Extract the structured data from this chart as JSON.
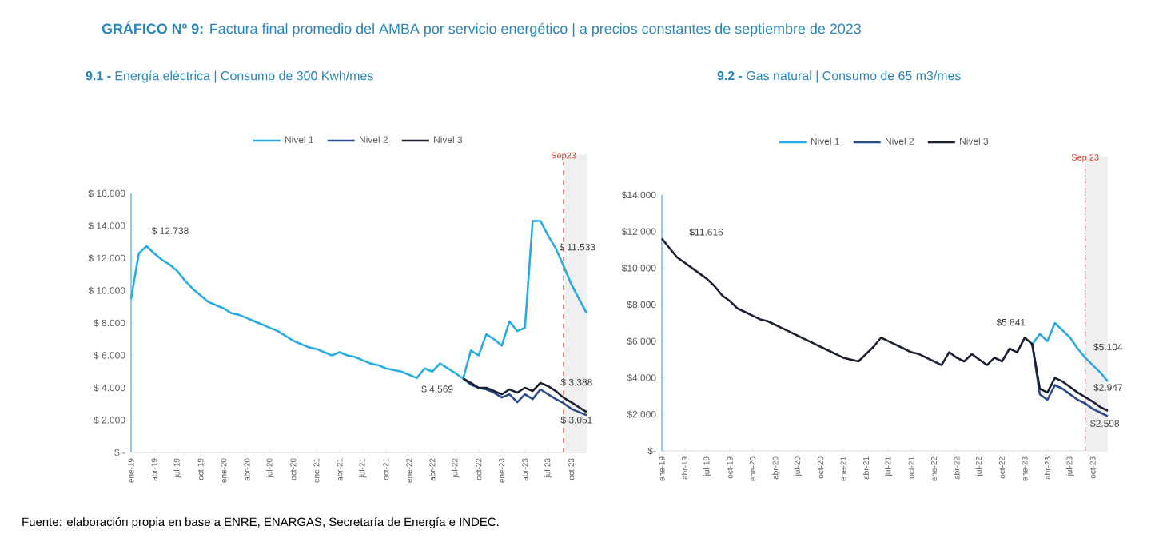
{
  "chart_data": [
    {
      "type": "other",
      "title": "**GRÁFICO Nº 9:** Factura final promedio del AMBA por servicio energético | a precios constantes de septiembre de 2023",
      "annotations": [
        "Fuente: elaboración propia en base a ENRE, ENARGAS, Secretaría de Energía e INDEC."
      ]
    },
    {
      "type": "line",
      "title": "**9.1 -** Energía eléctrica | Consumo de 300 Kwh/mes",
      "legend": "top",
      "x": [
        "2019-01",
        "2019-02",
        "2019-03",
        "2019-04",
        "2019-05",
        "2019-06",
        "2019-07",
        "2019-08",
        "2019-09",
        "2019-10",
        "2019-11",
        "2019-12",
        "2020-01",
        "2020-02",
        "2020-03",
        "2020-04",
        "2020-05",
        "2020-06",
        "2020-07",
        "2020-08",
        "2020-09",
        "2020-10",
        "2020-11",
        "2020-12",
        "2021-01",
        "2021-02",
        "2021-03",
        "2021-04",
        "2021-05",
        "2021-06",
        "2021-07",
        "2021-08",
        "2021-09",
        "2021-10",
        "2021-11",
        "2021-12",
        "2022-01",
        "2022-02",
        "2022-03",
        "2022-04",
        "2022-05",
        "2022-06",
        "2022-07",
        "2022-08",
        "2022-09",
        "2022-10",
        "2022-11",
        "2022-12",
        "2023-01",
        "2023-02",
        "2023-03",
        "2023-04",
        "2023-05",
        "2023-06",
        "2023-07",
        "2023-08",
        "2023-09",
        "2023-10",
        "2023-11",
        "2023-12"
      ],
      "xlim": [
        "2019-01",
        "2023-12"
      ],
      "xticks": [
        {
          "value": "2019-01",
          "label": "ene-19"
        },
        {
          "value": "2019-04",
          "label": "abr-19"
        },
        {
          "value": "2019-07",
          "label": "jul-19"
        },
        {
          "value": "2019-10",
          "label": "oct-19"
        },
        {
          "value": "2020-01",
          "label": "ene-20"
        },
        {
          "value": "2020-04",
          "label": "abr-20"
        },
        {
          "value": "2020-07",
          "label": "jul-20"
        },
        {
          "value": "2020-10",
          "label": "oct-20"
        },
        {
          "value": "2021-01",
          "label": "ene-21"
        },
        {
          "value": "2021-04",
          "label": "abr-21"
        },
        {
          "value": "2021-07",
          "label": "jul-21"
        },
        {
          "value": "2021-10",
          "label": "oct-21"
        },
        {
          "value": "2022-01",
          "label": "ene-22"
        },
        {
          "value": "2022-04",
          "label": "abr-22"
        },
        {
          "value": "2022-07",
          "label": "jul-22"
        },
        {
          "value": "2022-10",
          "label": "oct-22"
        },
        {
          "value": "2023-01",
          "label": "ene-23"
        },
        {
          "value": "2023-04",
          "label": "abr-23"
        },
        {
          "value": "2023-07",
          "label": "jul-23"
        },
        {
          "value": "2023-10",
          "label": "oct-23"
        }
      ],
      "ylim": [
        0,
        16
      ],
      "yticks": [
        {
          "value": 0,
          "label": "$ -"
        },
        {
          "value": 2,
          "label": "$ 2.000"
        },
        {
          "value": 4,
          "label": "$ 4.000"
        },
        {
          "value": 6,
          "label": "$ 6.000"
        },
        {
          "value": 8,
          "label": "$ 8.000"
        },
        {
          "value": 10,
          "label": "$ 10.000"
        },
        {
          "value": 12,
          "label": "$ 12.000"
        },
        {
          "value": 14,
          "label": "$ 14.000"
        },
        {
          "value": 16,
          "label": "$ 16.000"
        }
      ],
      "series": [
        {
          "name": "Nivel 1",
          "color": "#29abe2",
          "values": [
            9.5,
            12.3,
            12.738,
            12.3,
            11.9,
            11.6,
            11.2,
            10.6,
            10.1,
            9.7,
            9.3,
            9.1,
            8.9,
            8.6,
            8.5,
            8.3,
            8.1,
            7.9,
            7.7,
            7.5,
            7.2,
            6.9,
            6.7,
            6.5,
            6.4,
            6.2,
            6.0,
            6.2,
            6.0,
            5.9,
            5.7,
            5.5,
            5.4,
            5.2,
            5.1,
            5.0,
            4.8,
            4.6,
            5.2,
            5.0,
            5.5,
            5.2,
            4.9,
            4.569,
            6.3,
            6.0,
            7.3,
            7.0,
            6.6,
            8.1,
            7.5,
            7.7,
            14.3,
            14.3,
            13.4,
            12.6,
            11.533,
            10.4,
            9.5,
            8.6
          ]
        },
        {
          "name": "Nivel 2",
          "color": "#2b4c8c",
          "values": [
            null,
            null,
            null,
            null,
            null,
            null,
            null,
            null,
            null,
            null,
            null,
            null,
            null,
            null,
            null,
            null,
            null,
            null,
            null,
            null,
            null,
            null,
            null,
            null,
            null,
            null,
            null,
            null,
            null,
            null,
            null,
            null,
            null,
            null,
            null,
            null,
            null,
            null,
            null,
            null,
            null,
            null,
            null,
            4.569,
            4.2,
            4.0,
            3.9,
            3.7,
            3.4,
            3.6,
            3.1,
            3.6,
            3.3,
            3.9,
            3.6,
            3.3,
            3.051,
            2.7,
            2.5,
            2.3
          ]
        },
        {
          "name": "Nivel 3",
          "color": "#1b2033",
          "values": [
            null,
            null,
            null,
            null,
            null,
            null,
            null,
            null,
            null,
            null,
            null,
            null,
            null,
            null,
            null,
            null,
            null,
            null,
            null,
            null,
            null,
            null,
            null,
            null,
            null,
            null,
            null,
            null,
            null,
            null,
            null,
            null,
            null,
            null,
            null,
            null,
            null,
            null,
            null,
            null,
            null,
            null,
            null,
            4.569,
            4.3,
            4.0,
            4.0,
            3.8,
            3.6,
            3.9,
            3.7,
            4.0,
            3.8,
            4.3,
            4.1,
            3.8,
            3.388,
            3.1,
            2.8,
            2.5
          ]
        }
      ],
      "ref_lines": [
        {
          "axis": "x",
          "value": "2023-09",
          "label": "Sep23",
          "color": "#e03c31",
          "line_style": "dashed"
        }
      ],
      "bands": [
        {
          "axis": "x",
          "from": "2023-09",
          "to": "2023-12",
          "color": "#efefef"
        }
      ],
      "annotations": [
        {
          "text": "$ 12.738",
          "x": "2019-03",
          "y": 12.738
        },
        {
          "text": "$ 4.569",
          "x": "2022-08",
          "y": 4.569
        },
        {
          "text": "$ 11.533",
          "x": "2023-09",
          "y": 11.533
        },
        {
          "text": "$ 3.388",
          "x": "2023-09",
          "y": 3.388
        },
        {
          "text": "$ 3.051",
          "x": "2023-09",
          "y": 3.051
        }
      ]
    },
    {
      "type": "line",
      "title": "**9.2 -** Gas natural | Consumo de 65 m3/mes",
      "legend": "top",
      "x": [
        "2019-01",
        "2019-02",
        "2019-03",
        "2019-04",
        "2019-05",
        "2019-06",
        "2019-07",
        "2019-08",
        "2019-09",
        "2019-10",
        "2019-11",
        "2019-12",
        "2020-01",
        "2020-02",
        "2020-03",
        "2020-04",
        "2020-05",
        "2020-06",
        "2020-07",
        "2020-08",
        "2020-09",
        "2020-10",
        "2020-11",
        "2020-12",
        "2021-01",
        "2021-02",
        "2021-03",
        "2021-04",
        "2021-05",
        "2021-06",
        "2021-07",
        "2021-08",
        "2021-09",
        "2021-10",
        "2021-11",
        "2021-12",
        "2022-01",
        "2022-02",
        "2022-03",
        "2022-04",
        "2022-05",
        "2022-06",
        "2022-07",
        "2022-08",
        "2022-09",
        "2022-10",
        "2022-11",
        "2022-12",
        "2023-01",
        "2023-02",
        "2023-03",
        "2023-04",
        "2023-05",
        "2023-06",
        "2023-07",
        "2023-08",
        "2023-09",
        "2023-10",
        "2023-11",
        "2023-12"
      ],
      "xlim": [
        "2019-01",
        "2023-12"
      ],
      "xticks": [
        {
          "value": "2019-01",
          "label": "ene-19"
        },
        {
          "value": "2019-04",
          "label": "abr-19"
        },
        {
          "value": "2019-07",
          "label": "jul-19"
        },
        {
          "value": "2019-10",
          "label": "oct-19"
        },
        {
          "value": "2020-01",
          "label": "ene-20"
        },
        {
          "value": "2020-04",
          "label": "abr-20"
        },
        {
          "value": "2020-07",
          "label": "jul-20"
        },
        {
          "value": "2020-10",
          "label": "oct-20"
        },
        {
          "value": "2021-01",
          "label": "ene-21"
        },
        {
          "value": "2021-04",
          "label": "abr-21"
        },
        {
          "value": "2021-07",
          "label": "jul-21"
        },
        {
          "value": "2021-10",
          "label": "oct-21"
        },
        {
          "value": "2022-01",
          "label": "ene-22"
        },
        {
          "value": "2022-04",
          "label": "abr-22"
        },
        {
          "value": "2022-07",
          "label": "jul-22"
        },
        {
          "value": "2022-10",
          "label": "oct-22"
        },
        {
          "value": "2023-01",
          "label": "ene-23"
        },
        {
          "value": "2023-04",
          "label": "abr-23"
        },
        {
          "value": "2023-07",
          "label": "jul-23"
        },
        {
          "value": "2023-10",
          "label": "oct-23"
        }
      ],
      "ylim": [
        0,
        14
      ],
      "yticks": [
        {
          "value": 0,
          "label": "$-"
        },
        {
          "value": 2,
          "label": "$2.000"
        },
        {
          "value": 4,
          "label": "$4.000"
        },
        {
          "value": 6,
          "label": "$6.000"
        },
        {
          "value": 8,
          "label": "$8.000"
        },
        {
          "value": 10,
          "label": "$10.000"
        },
        {
          "value": 12,
          "label": "$12.000"
        },
        {
          "value": 14,
          "label": "$14.000"
        }
      ],
      "series": [
        {
          "name": "Nivel 1",
          "color": "#29abe2",
          "values": [
            null,
            null,
            null,
            null,
            null,
            null,
            null,
            null,
            null,
            null,
            null,
            null,
            null,
            null,
            null,
            null,
            null,
            null,
            null,
            null,
            null,
            null,
            null,
            null,
            null,
            null,
            null,
            null,
            null,
            null,
            null,
            null,
            null,
            null,
            null,
            null,
            null,
            null,
            null,
            null,
            null,
            null,
            null,
            null,
            null,
            null,
            null,
            null,
            null,
            5.841,
            6.4,
            6.0,
            7.0,
            6.6,
            6.2,
            5.6,
            5.104,
            4.7,
            4.3,
            3.8
          ]
        },
        {
          "name": "Nivel 2",
          "color": "#2b4c8c",
          "values": [
            null,
            null,
            null,
            null,
            null,
            null,
            null,
            null,
            null,
            null,
            null,
            null,
            null,
            null,
            null,
            null,
            null,
            null,
            null,
            null,
            null,
            null,
            null,
            null,
            null,
            null,
            null,
            null,
            null,
            null,
            null,
            null,
            null,
            null,
            null,
            null,
            null,
            null,
            null,
            null,
            null,
            null,
            null,
            null,
            null,
            null,
            null,
            null,
            null,
            5.841,
            3.1,
            2.8,
            3.6,
            3.4,
            3.1,
            2.8,
            2.598,
            2.3,
            2.1,
            1.9
          ]
        },
        {
          "name": "Nivel 3",
          "color": "#1b2033",
          "values": [
            11.616,
            11.1,
            10.6,
            10.3,
            10.0,
            9.7,
            9.4,
            9.0,
            8.5,
            8.2,
            7.8,
            7.6,
            7.4,
            7.2,
            7.1,
            6.9,
            6.7,
            6.5,
            6.3,
            6.1,
            5.9,
            5.7,
            5.5,
            5.3,
            5.1,
            5.0,
            4.9,
            5.3,
            5.7,
            6.2,
            6.0,
            5.8,
            5.6,
            5.4,
            5.3,
            5.1,
            4.9,
            4.7,
            5.4,
            5.1,
            4.9,
            5.3,
            5.0,
            4.7,
            5.1,
            4.9,
            5.6,
            5.4,
            6.2,
            5.841,
            3.4,
            3.2,
            4.0,
            3.8,
            3.5,
            3.2,
            2.947,
            2.7,
            2.4,
            2.2
          ]
        }
      ],
      "ref_lines": [
        {
          "axis": "x",
          "value": "2023-09",
          "label": "Sep 23",
          "color": "#e03c31",
          "line_style": "dashed"
        }
      ],
      "bands": [
        {
          "axis": "x",
          "from": "2023-09",
          "to": "2023-12",
          "color": "#efefef"
        }
      ],
      "annotations": [
        {
          "text": "$11.616",
          "x": "2019-01",
          "y": 11.616
        },
        {
          "text": "$5.841",
          "x": "2023-02",
          "y": 5.841
        },
        {
          "text": "$5.104",
          "x": "2023-09",
          "y": 5.104
        },
        {
          "text": "$2.947",
          "x": "2023-09",
          "y": 2.947
        },
        {
          "text": "$2.598",
          "x": "2023-09",
          "y": 2.598
        }
      ]
    }
  ]
}
